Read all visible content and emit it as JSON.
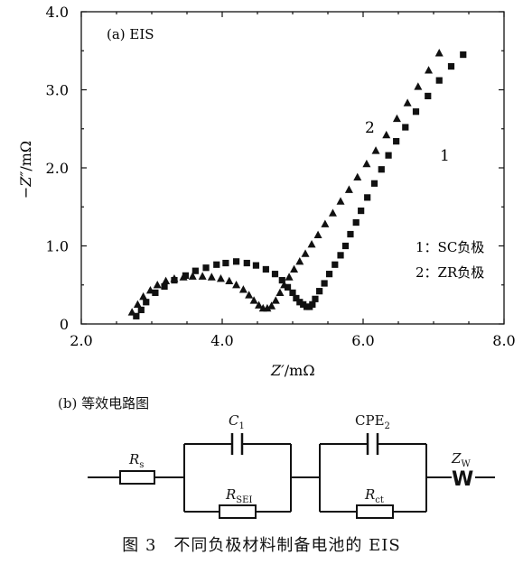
{
  "chart_data": {
    "type": "scatter",
    "panel_label": "(a) EIS",
    "xlabel_main": "Z′",
    "xlabel_unit": "/mΩ",
    "ylabel_main": "−Z″",
    "ylabel_unit": "/mΩ",
    "xlim": [
      2.0,
      8.0
    ],
    "ylim": [
      0,
      4.0
    ],
    "x_ticks": [
      "2.0",
      "4.0",
      "6.0",
      "8.0"
    ],
    "y_ticks": [
      "0",
      "1.0",
      "2.0",
      "3.0",
      "4.0"
    ],
    "legend_lines": [
      "1：SC负极",
      "2：ZR负极"
    ],
    "series": [
      {
        "label": "1",
        "marker": "square",
        "points": [
          [
            2.78,
            0.1
          ],
          [
            2.85,
            0.18
          ],
          [
            2.92,
            0.28
          ],
          [
            3.05,
            0.4
          ],
          [
            3.18,
            0.48
          ],
          [
            3.32,
            0.56
          ],
          [
            3.48,
            0.62
          ],
          [
            3.62,
            0.68
          ],
          [
            3.77,
            0.72
          ],
          [
            3.92,
            0.76
          ],
          [
            4.05,
            0.78
          ],
          [
            4.2,
            0.8
          ],
          [
            4.35,
            0.78
          ],
          [
            4.48,
            0.75
          ],
          [
            4.62,
            0.7
          ],
          [
            4.75,
            0.64
          ],
          [
            4.85,
            0.56
          ],
          [
            4.93,
            0.47
          ],
          [
            5.0,
            0.4
          ],
          [
            5.05,
            0.33
          ],
          [
            5.1,
            0.28
          ],
          [
            5.15,
            0.25
          ],
          [
            5.2,
            0.22
          ],
          [
            5.24,
            0.22
          ],
          [
            5.28,
            0.25
          ],
          [
            5.32,
            0.32
          ],
          [
            5.38,
            0.42
          ],
          [
            5.45,
            0.52
          ],
          [
            5.52,
            0.64
          ],
          [
            5.6,
            0.76
          ],
          [
            5.68,
            0.88
          ],
          [
            5.75,
            1.0
          ],
          [
            5.82,
            1.15
          ],
          [
            5.9,
            1.3
          ],
          [
            5.97,
            1.45
          ],
          [
            6.06,
            1.62
          ],
          [
            6.16,
            1.8
          ],
          [
            6.26,
            1.98
          ],
          [
            6.36,
            2.16
          ],
          [
            6.47,
            2.34
          ],
          [
            6.6,
            2.52
          ],
          [
            6.75,
            2.72
          ],
          [
            6.92,
            2.92
          ],
          [
            7.08,
            3.12
          ],
          [
            7.25,
            3.3
          ],
          [
            7.42,
            3.45
          ]
        ]
      },
      {
        "label": "2",
        "marker": "triangle",
        "points": [
          [
            2.72,
            0.15
          ],
          [
            2.8,
            0.25
          ],
          [
            2.88,
            0.35
          ],
          [
            2.98,
            0.43
          ],
          [
            3.08,
            0.5
          ],
          [
            3.2,
            0.55
          ],
          [
            3.32,
            0.58
          ],
          [
            3.45,
            0.6
          ],
          [
            3.58,
            0.61
          ],
          [
            3.72,
            0.61
          ],
          [
            3.85,
            0.6
          ],
          [
            3.98,
            0.58
          ],
          [
            4.1,
            0.55
          ],
          [
            4.2,
            0.5
          ],
          [
            4.3,
            0.44
          ],
          [
            4.38,
            0.37
          ],
          [
            4.45,
            0.3
          ],
          [
            4.52,
            0.24
          ],
          [
            4.58,
            0.2
          ],
          [
            4.64,
            0.2
          ],
          [
            4.7,
            0.23
          ],
          [
            4.76,
            0.3
          ],
          [
            4.82,
            0.4
          ],
          [
            4.88,
            0.5
          ],
          [
            4.95,
            0.6
          ],
          [
            5.02,
            0.7
          ],
          [
            5.1,
            0.8
          ],
          [
            5.18,
            0.9
          ],
          [
            5.27,
            1.02
          ],
          [
            5.36,
            1.14
          ],
          [
            5.46,
            1.28
          ],
          [
            5.57,
            1.42
          ],
          [
            5.68,
            1.57
          ],
          [
            5.8,
            1.72
          ],
          [
            5.92,
            1.88
          ],
          [
            6.05,
            2.05
          ],
          [
            6.18,
            2.22
          ],
          [
            6.33,
            2.42
          ],
          [
            6.48,
            2.63
          ],
          [
            6.63,
            2.83
          ],
          [
            6.78,
            3.04
          ],
          [
            6.93,
            3.25
          ],
          [
            7.08,
            3.47
          ]
        ]
      }
    ]
  },
  "circuit": {
    "label": "(b) 等效电路图",
    "rs": "R",
    "rs_sub": "s",
    "c1": "C",
    "c1_sub": "1",
    "rsei": "R",
    "rsei_sub": "SEI",
    "cpe2": "CPE",
    "cpe2_sub": "2",
    "rct": "R",
    "rct_sub": "ct",
    "zw": "Z",
    "zw_sub": "W",
    "w_symbol": "W"
  },
  "caption": "图 3　不同负极材料制备电池的 EIS"
}
